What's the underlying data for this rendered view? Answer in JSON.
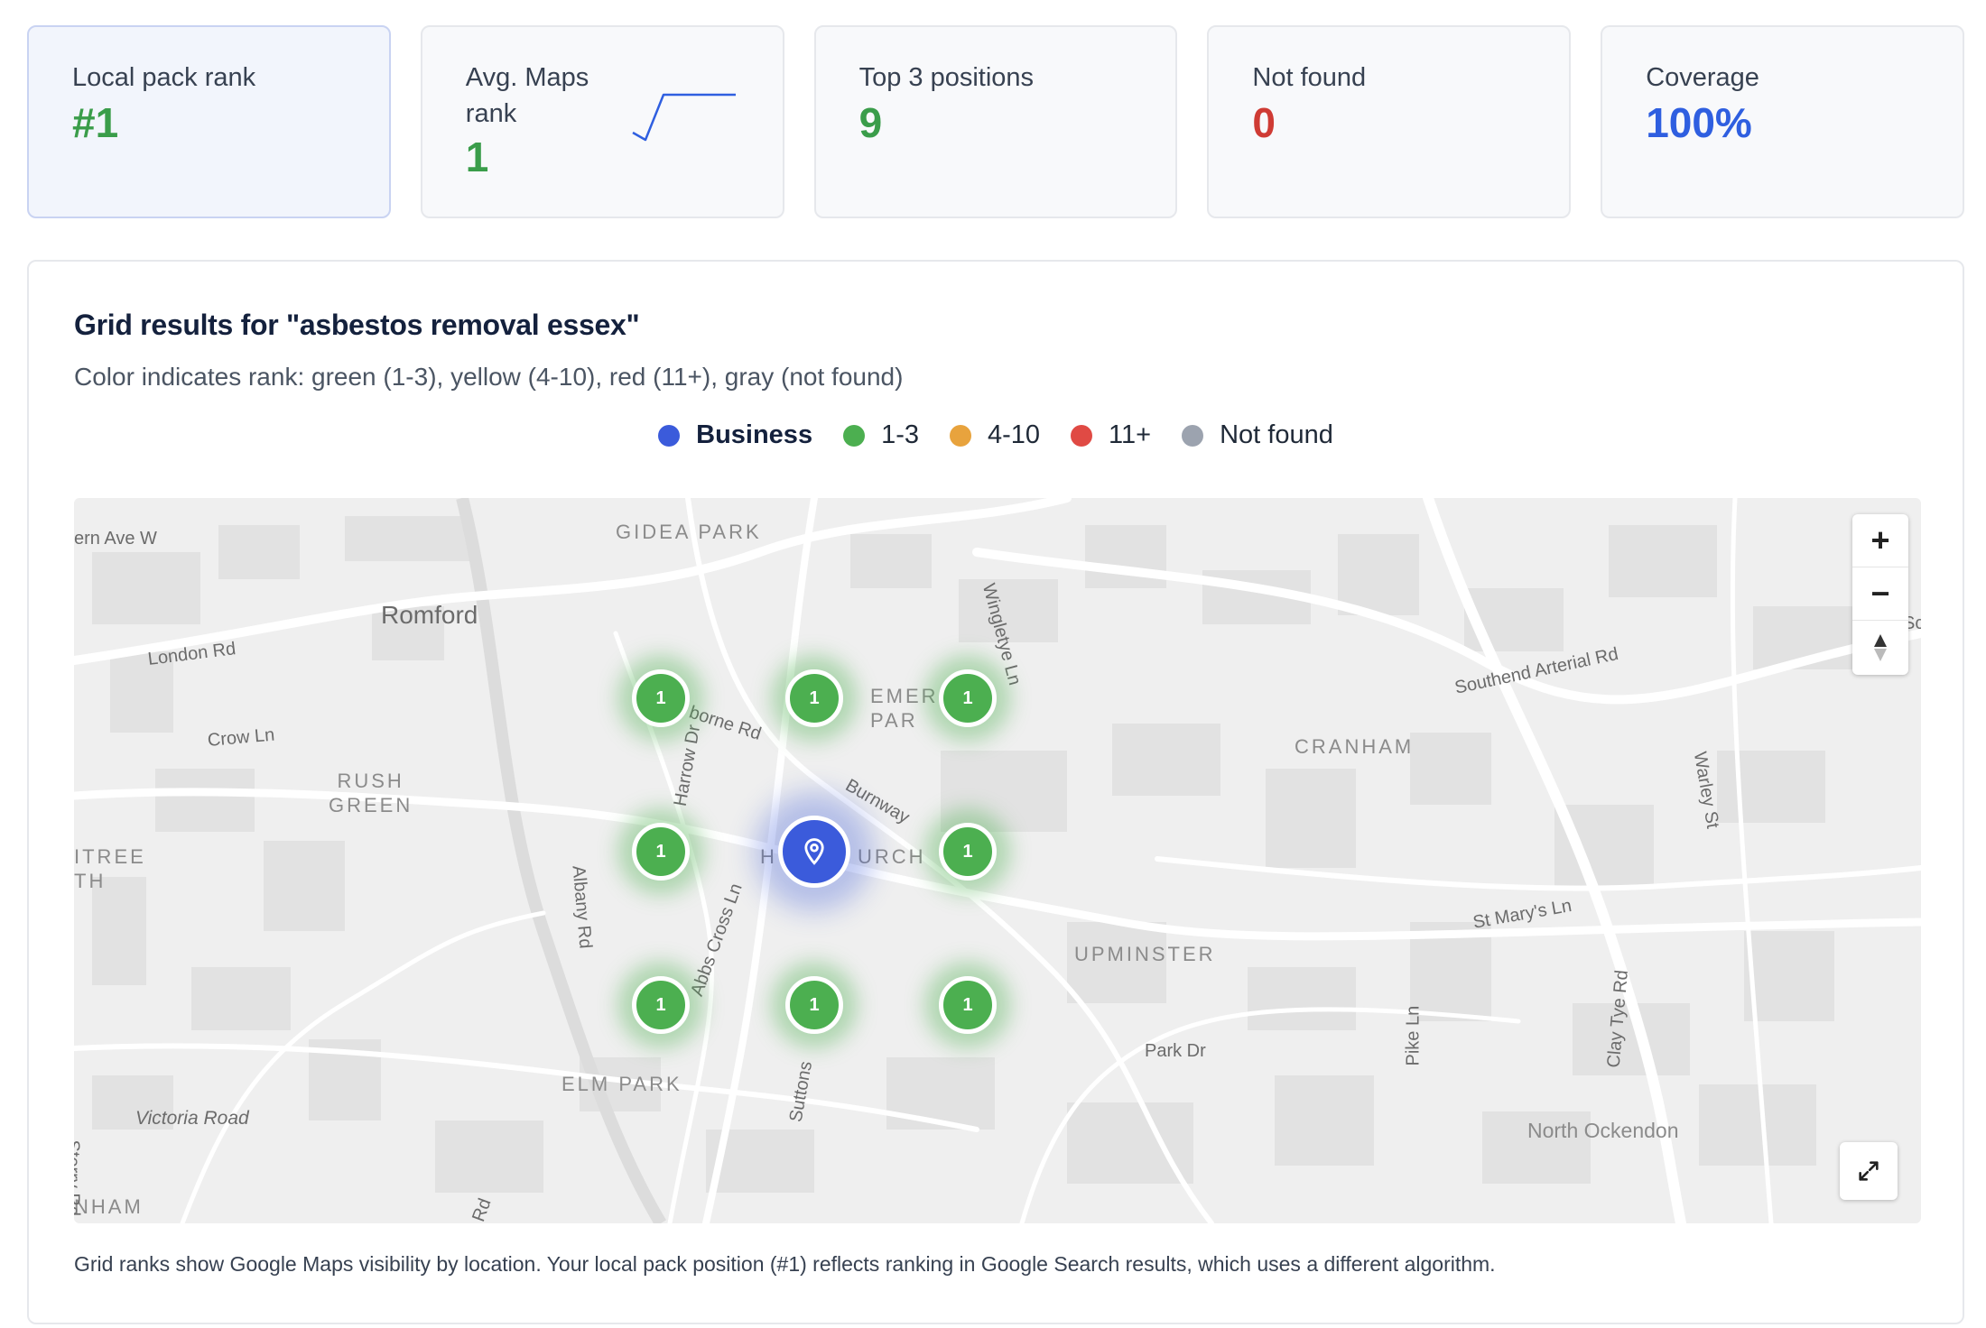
{
  "stats": [
    {
      "label": "Local pack rank",
      "value": "#1",
      "color": "#3a9d4a"
    },
    {
      "label": "Avg. Maps rank",
      "value": "1",
      "color": "#3a9d4a"
    },
    {
      "label": "Top 3 positions",
      "value": "9",
      "color": "#3a9d4a"
    },
    {
      "label": "Not found",
      "value": "0",
      "color": "#cf3b34"
    },
    {
      "label": "Coverage",
      "value": "100%",
      "color": "#2f5fe0"
    }
  ],
  "grid": {
    "title": "Grid results for \"asbestos removal essex\"",
    "subtitle": "Color indicates rank: green (1-3), yellow (4-10), red (11+), gray (not found)",
    "legend": [
      {
        "label": "Business",
        "color": "#3b5bdb"
      },
      {
        "label": "1-3",
        "color": "#4caf50"
      },
      {
        "label": "4-10",
        "color": "#e8a33d"
      },
      {
        "label": "11+",
        "color": "#e04a44"
      },
      {
        "label": "Not found",
        "color": "#9ca3af"
      }
    ],
    "footnote": "Grid ranks show Google Maps visibility by location. Your local pack position (#1) reflects ranking in Google Search results, which uses a different algorithm."
  },
  "map": {
    "places": {
      "gidea_park": "GIDEA PARK",
      "romford": "Romford",
      "rush_green": "RUSH\nGREEN",
      "emerson_park": "EMER\nPAR",
      "hornchurch_left": "H",
      "hornchurch_right": "URCH",
      "cranham": "CRANHAM",
      "upminster": "UPMINSTER",
      "elm_park": "ELM PARK",
      "north_ockendon": "North Ockendon",
      "itree": "ITREE\nTH",
      "nham": "NHAM"
    },
    "roads": {
      "ern_ave": "ern Ave W",
      "london_rd": "London Rd",
      "crow_ln": "Crow Ln",
      "wingletye_ln": "Wingletye Ln",
      "borne_rd": "borne Rd",
      "harrow_dr": "Harrow Dr",
      "burnway": "Burnway",
      "albany_rd": "Albany Rd",
      "abbs_cross_ln": "Abbs Cross Ln",
      "suttons": "Suttons",
      "southend_arterial_rd": "Southend Arterial Rd",
      "warley_st": "Warley St",
      "st_marys_ln": "St Mary's Ln",
      "park_dr": "Park Dr",
      "pike_ln": "Pike Ln",
      "clay_tye_rd": "Clay Tye Rd",
      "sterry_rd": "Sterry Rd",
      "victoria_road": "Victoria Road",
      "rd": "Rd",
      "sc": "Sc"
    },
    "grid_points": [
      {
        "rank": "1",
        "color": "#4caf50"
      },
      {
        "rank": "1",
        "color": "#4caf50"
      },
      {
        "rank": "1",
        "color": "#4caf50"
      },
      {
        "rank": "1",
        "color": "#4caf50"
      },
      {
        "rank": "1",
        "color": "#4caf50"
      },
      {
        "rank": "1",
        "color": "#4caf50"
      },
      {
        "rank": "1",
        "color": "#4caf50"
      },
      {
        "rank": "1",
        "color": "#4caf50"
      }
    ],
    "business_icon": "location-pin-icon",
    "controls": {
      "zoom_in": "+",
      "zoom_out": "−",
      "compass": "compass-icon",
      "fullscreen": "expand-icon"
    }
  }
}
